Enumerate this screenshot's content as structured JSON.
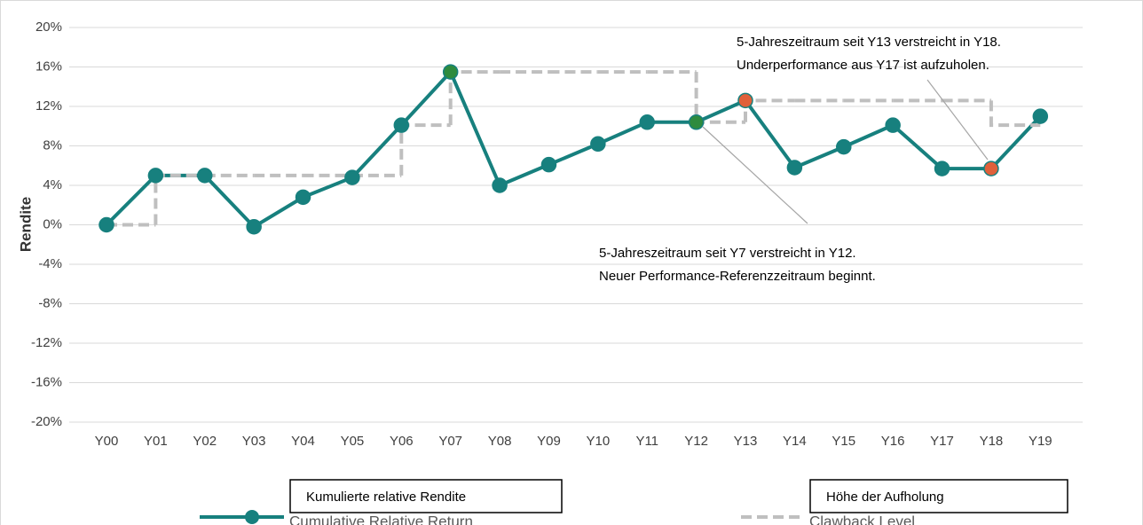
{
  "chart_data": {
    "type": "line",
    "y_label": "Rendite",
    "categories": [
      "Y00",
      "Y01",
      "Y02",
      "Y03",
      "Y04",
      "Y05",
      "Y06",
      "Y07",
      "Y08",
      "Y09",
      "Y10",
      "Y11",
      "Y12",
      "Y13",
      "Y14",
      "Y15",
      "Y16",
      "Y17",
      "Y18",
      "Y19"
    ],
    "series": [
      {
        "name": "Cumulative Relative Return",
        "color": "#17807e",
        "style": "solid-markers",
        "values": [
          0,
          5,
          5,
          -0.2,
          2.8,
          4.8,
          10.1,
          15.5,
          4.0,
          6.1,
          8.2,
          10.4,
          10.4,
          12.6,
          5.8,
          7.9,
          10.1,
          5.7,
          5.7,
          11.0
        ],
        "point_colors": [
          "#17807e",
          "#17807e",
          "#17807e",
          "#17807e",
          "#17807e",
          "#17807e",
          "#17807e",
          "#2e8b3e",
          "#17807e",
          "#17807e",
          "#17807e",
          "#17807e",
          "#2e8b3e",
          "#e0603a",
          "#17807e",
          "#17807e",
          "#17807e",
          "#17807e",
          "#e0603a",
          "#17807e"
        ]
      },
      {
        "name": "Clawback Level",
        "color": "#bfbfbf",
        "style": "dashed-step",
        "values": [
          0,
          5,
          5,
          5,
          5,
          5,
          10.1,
          15.5,
          15.5,
          15.5,
          15.5,
          15.5,
          10.4,
          12.6,
          12.6,
          12.6,
          12.6,
          12.6,
          10.1,
          10.1
        ]
      }
    ],
    "legend_overlays": [
      "Kumulierte relative Rendite",
      "Höhe der Aufholung"
    ],
    "annotations": [
      {
        "lines": [
          "5-Jahreszeitraum seit Y13 verstreicht in Y18.",
          "Underperformance aus Y17 ist aufzuholen."
        ]
      },
      {
        "lines": [
          "5-Jahreszeitraum seit Y7 verstreicht in Y12.",
          "Neuer Performance-Referenzzeitraum beginnt."
        ]
      }
    ],
    "ylim": [
      -20,
      20
    ],
    "yticks": [
      {
        "value": -20,
        "label": "-20%"
      },
      {
        "value": -16,
        "label": "-16%"
      },
      {
        "value": -12,
        "label": "-12%"
      },
      {
        "value": -8,
        "label": "-8%"
      },
      {
        "value": -4,
        "label": "-4%"
      },
      {
        "value": 0,
        "label": "0%"
      },
      {
        "value": 4,
        "label": "4%"
      },
      {
        "value": 8,
        "label": "8%"
      },
      {
        "value": 12,
        "label": "12%"
      },
      {
        "value": 16,
        "label": "16%"
      },
      {
        "value": 20,
        "label": "20%"
      }
    ],
    "grid": true,
    "legend": "bottom"
  }
}
